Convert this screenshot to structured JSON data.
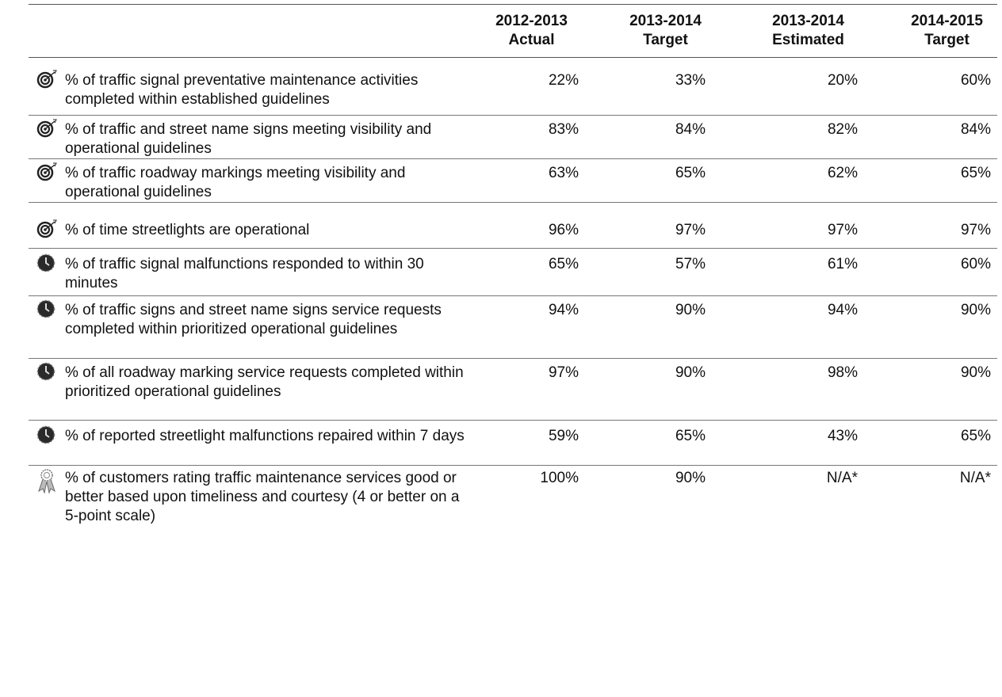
{
  "table": {
    "header": [
      {
        "period": "2012-2013",
        "kind": "Actual"
      },
      {
        "period": "2013-2014",
        "kind": "Target"
      },
      {
        "period": "2013-2014",
        "kind": "Estimated"
      },
      {
        "period": "2014-2015",
        "kind": "Target"
      }
    ],
    "rows": [
      {
        "measure": "% of traffic signal preventative maintenance activities completed within established guidelines",
        "values": [
          "22%",
          "33%",
          "20%",
          "60%"
        ]
      },
      {
        "measure": "% of traffic and street name signs meeting visibility and operational guidelines",
        "values": [
          "83%",
          "84%",
          "82%",
          "84%"
        ]
      },
      {
        "measure": "% of traffic roadway markings meeting visibility and operational guidelines",
        "values": [
          "63%",
          "65%",
          "62%",
          "65%"
        ]
      },
      {
        "measure": "% of time streetlights are operational",
        "values": [
          "96%",
          "97%",
          "97%",
          "97%"
        ]
      },
      {
        "measure": "% of traffic signal malfunctions responded to within 30 minutes",
        "values": [
          "65%",
          "57%",
          "61%",
          "60%"
        ]
      },
      {
        "measure": "% of traffic signs and street name signs service requests completed within prioritized operational guidelines",
        "values": [
          "94%",
          "90%",
          "94%",
          "90%"
        ]
      },
      {
        "measure": "% of all roadway marking service requests completed within prioritized operational guidelines",
        "values": [
          "97%",
          "90%",
          "98%",
          "90%"
        ]
      },
      {
        "measure": "% of reported streetlight malfunctions repaired within 7 days",
        "values": [
          "59%",
          "65%",
          "43%",
          "65%"
        ]
      },
      {
        "measure": "% of customers rating traffic maintenance services good or better based upon timeliness and courtesy (4 or better on a 5-point scale)",
        "values": [
          "100%",
          "90%",
          "N/A*",
          "N/A*"
        ]
      }
    ]
  }
}
